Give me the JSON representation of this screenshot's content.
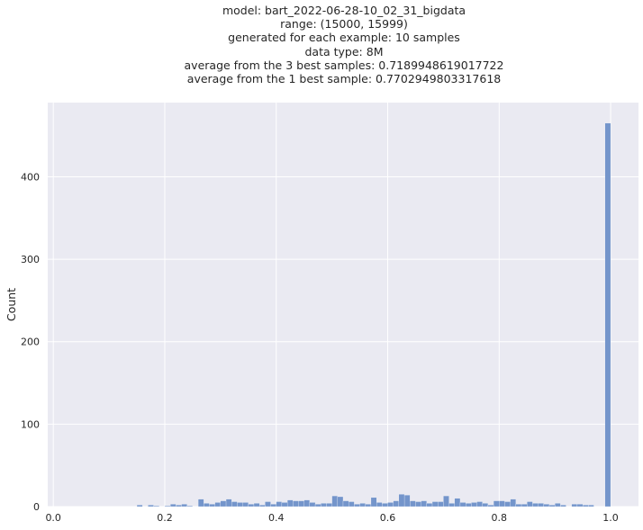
{
  "chart_data": {
    "type": "bar",
    "title_lines": [
      "model: bart_2022-06-28-10_02_31_bigdata",
      "range: (15000, 15999)",
      "generated for each example: 10 samples",
      "data type: 8M",
      "average from the 3 best samples: 0.7189948619017722",
      "average from the 1 best sample: 0.7702949803317618"
    ],
    "xlabel": "",
    "ylabel": "Count",
    "xlim": [
      -0.01,
      1.05
    ],
    "ylim": [
      0,
      490
    ],
    "xticks": [
      "0.0",
      "0.2",
      "0.4",
      "0.6",
      "0.8",
      "1.0"
    ],
    "yticks": [
      "0",
      "100",
      "200",
      "300",
      "400"
    ],
    "bin_width": 0.01,
    "bins": [
      {
        "x": 0.15,
        "y": 2
      },
      {
        "x": 0.17,
        "y": 2
      },
      {
        "x": 0.18,
        "y": 1
      },
      {
        "x": 0.2,
        "y": 1
      },
      {
        "x": 0.21,
        "y": 3
      },
      {
        "x": 0.22,
        "y": 2
      },
      {
        "x": 0.23,
        "y": 3
      },
      {
        "x": 0.24,
        "y": 1
      },
      {
        "x": 0.26,
        "y": 9
      },
      {
        "x": 0.27,
        "y": 4
      },
      {
        "x": 0.28,
        "y": 3
      },
      {
        "x": 0.29,
        "y": 5
      },
      {
        "x": 0.3,
        "y": 7
      },
      {
        "x": 0.31,
        "y": 9
      },
      {
        "x": 0.32,
        "y": 6
      },
      {
        "x": 0.33,
        "y": 5
      },
      {
        "x": 0.34,
        "y": 5
      },
      {
        "x": 0.35,
        "y": 3
      },
      {
        "x": 0.36,
        "y": 4
      },
      {
        "x": 0.37,
        "y": 2
      },
      {
        "x": 0.38,
        "y": 6
      },
      {
        "x": 0.39,
        "y": 3
      },
      {
        "x": 0.4,
        "y": 6
      },
      {
        "x": 0.41,
        "y": 5
      },
      {
        "x": 0.42,
        "y": 8
      },
      {
        "x": 0.43,
        "y": 7
      },
      {
        "x": 0.44,
        "y": 7
      },
      {
        "x": 0.45,
        "y": 8
      },
      {
        "x": 0.46,
        "y": 5
      },
      {
        "x": 0.47,
        "y": 3
      },
      {
        "x": 0.48,
        "y": 4
      },
      {
        "x": 0.49,
        "y": 4
      },
      {
        "x": 0.5,
        "y": 13
      },
      {
        "x": 0.51,
        "y": 12
      },
      {
        "x": 0.52,
        "y": 7
      },
      {
        "x": 0.53,
        "y": 6
      },
      {
        "x": 0.54,
        "y": 3
      },
      {
        "x": 0.55,
        "y": 4
      },
      {
        "x": 0.56,
        "y": 3
      },
      {
        "x": 0.57,
        "y": 11
      },
      {
        "x": 0.58,
        "y": 5
      },
      {
        "x": 0.59,
        "y": 4
      },
      {
        "x": 0.6,
        "y": 5
      },
      {
        "x": 0.61,
        "y": 7
      },
      {
        "x": 0.62,
        "y": 15
      },
      {
        "x": 0.63,
        "y": 14
      },
      {
        "x": 0.64,
        "y": 7
      },
      {
        "x": 0.65,
        "y": 6
      },
      {
        "x": 0.66,
        "y": 7
      },
      {
        "x": 0.67,
        "y": 4
      },
      {
        "x": 0.68,
        "y": 6
      },
      {
        "x": 0.69,
        "y": 6
      },
      {
        "x": 0.7,
        "y": 13
      },
      {
        "x": 0.71,
        "y": 4
      },
      {
        "x": 0.72,
        "y": 10
      },
      {
        "x": 0.73,
        "y": 5
      },
      {
        "x": 0.74,
        "y": 4
      },
      {
        "x": 0.75,
        "y": 5
      },
      {
        "x": 0.76,
        "y": 6
      },
      {
        "x": 0.77,
        "y": 4
      },
      {
        "x": 0.78,
        "y": 2
      },
      {
        "x": 0.79,
        "y": 7
      },
      {
        "x": 0.8,
        "y": 7
      },
      {
        "x": 0.81,
        "y": 6
      },
      {
        "x": 0.82,
        "y": 9
      },
      {
        "x": 0.83,
        "y": 3
      },
      {
        "x": 0.84,
        "y": 3
      },
      {
        "x": 0.85,
        "y": 6
      },
      {
        "x": 0.86,
        "y": 4
      },
      {
        "x": 0.87,
        "y": 4
      },
      {
        "x": 0.88,
        "y": 3
      },
      {
        "x": 0.89,
        "y": 2
      },
      {
        "x": 0.9,
        "y": 4
      },
      {
        "x": 0.91,
        "y": 2
      },
      {
        "x": 0.93,
        "y": 3
      },
      {
        "x": 0.94,
        "y": 3
      },
      {
        "x": 0.95,
        "y": 2
      },
      {
        "x": 0.96,
        "y": 2
      },
      {
        "x": 0.99,
        "y": 465
      }
    ],
    "grid": true,
    "colors": {
      "background": "#eaeaf2",
      "bar": "#7495cb",
      "grid": "#ffffff"
    }
  }
}
